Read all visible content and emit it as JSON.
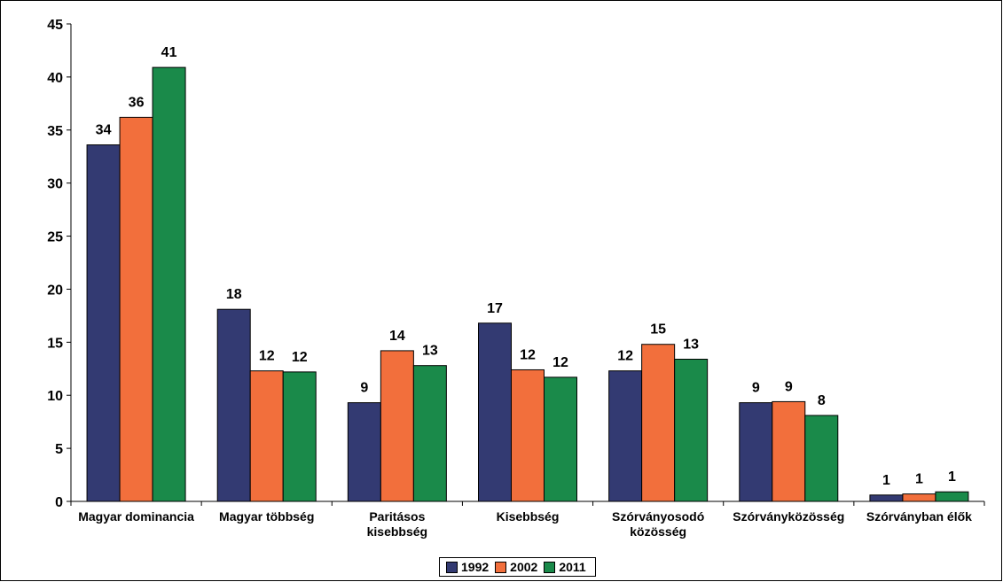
{
  "chart_data": {
    "type": "bar",
    "title": "",
    "xlabel": "",
    "ylabel": "",
    "ylim": [
      0,
      45
    ],
    "yticks": [
      0,
      5,
      10,
      15,
      20,
      25,
      30,
      35,
      40,
      45
    ],
    "grid": false,
    "legend_position": "bottom",
    "categories": [
      [
        "Magyar dominancia"
      ],
      [
        "Magyar többség"
      ],
      [
        "Paritásos",
        "kisebbség"
      ],
      [
        "Kisebbség"
      ],
      [
        "Szórványosodó",
        "közösség"
      ],
      [
        "Szórványközösség"
      ],
      [
        "Szórványban élők"
      ]
    ],
    "series": [
      {
        "name": "1992",
        "color": "#333a72",
        "values": [
          33.6,
          18.1,
          9.3,
          16.8,
          12.3,
          9.3,
          0.6
        ],
        "labels": [
          "34",
          "18",
          "9",
          "17",
          "12",
          "9",
          "1"
        ]
      },
      {
        "name": "2002",
        "color": "#f26f3c",
        "values": [
          36.2,
          12.3,
          14.2,
          12.4,
          14.8,
          9.4,
          0.7
        ],
        "labels": [
          "36",
          "12",
          "14",
          "12",
          "15",
          "9",
          "1"
        ]
      },
      {
        "name": "2011",
        "color": "#1a8a4a",
        "values": [
          40.9,
          12.2,
          12.8,
          11.7,
          13.4,
          8.1,
          0.9
        ],
        "labels": [
          "41",
          "12",
          "13",
          "12",
          "13",
          "8",
          "1"
        ]
      }
    ]
  }
}
